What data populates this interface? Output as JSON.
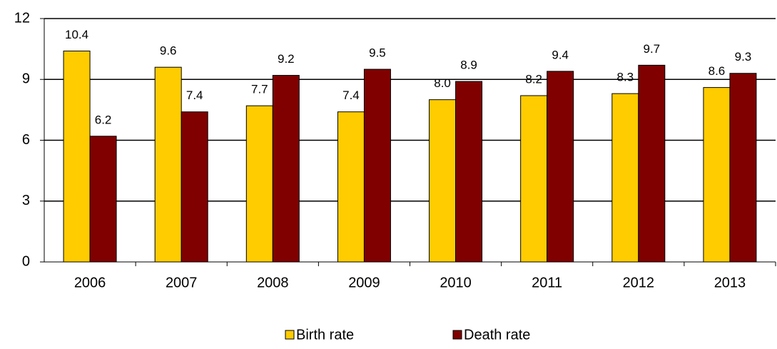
{
  "chart_data": {
    "type": "bar",
    "categories": [
      "2006",
      "2007",
      "2008",
      "2009",
      "2010",
      "2011",
      "2012",
      "2013"
    ],
    "series": [
      {
        "name": "Birth rate",
        "color": "#ffcc00",
        "values": [
          10.4,
          9.6,
          7.7,
          7.4,
          8.0,
          8.2,
          8.3,
          8.6
        ],
        "value_labels": [
          "10.4",
          "9.6",
          "7.7",
          "7.4",
          "8.0",
          "8.2",
          "8.3",
          "8.6"
        ]
      },
      {
        "name": "Death rate",
        "color": "#800000",
        "values": [
          6.2,
          7.4,
          9.2,
          9.5,
          8.9,
          9.4,
          9.7,
          9.3
        ],
        "value_labels": [
          "6.2",
          "7.4",
          "9.2",
          "9.5",
          "8.9",
          "9.4",
          "9.7",
          "9.3"
        ]
      }
    ],
    "ylim": [
      0,
      12
    ],
    "yticks": [
      0,
      3,
      6,
      9,
      12
    ],
    "grid": true,
    "legend": "bottom"
  }
}
